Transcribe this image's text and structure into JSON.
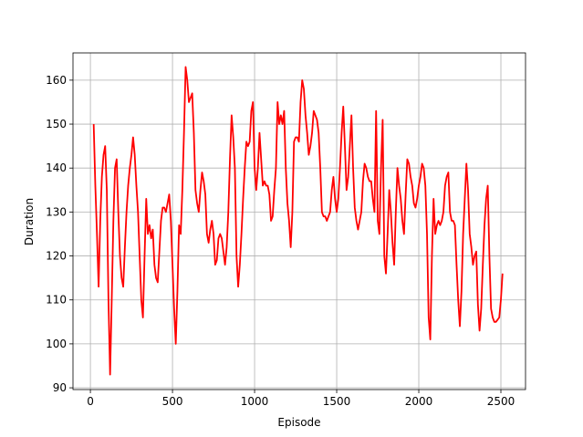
{
  "chart_data": {
    "type": "line",
    "xlabel": "Episode",
    "ylabel": "Duration",
    "x": [
      20,
      30,
      40,
      50,
      60,
      70,
      80,
      90,
      100,
      110,
      120,
      130,
      140,
      150,
      160,
      170,
      180,
      190,
      200,
      210,
      220,
      230,
      240,
      250,
      260,
      270,
      280,
      290,
      300,
      310,
      320,
      330,
      340,
      350,
      360,
      370,
      380,
      390,
      400,
      410,
      420,
      430,
      440,
      450,
      460,
      470,
      480,
      490,
      500,
      510,
      520,
      530,
      540,
      550,
      560,
      570,
      580,
      590,
      600,
      610,
      620,
      630,
      640,
      650,
      660,
      670,
      680,
      690,
      700,
      710,
      720,
      730,
      740,
      750,
      760,
      770,
      780,
      790,
      800,
      810,
      820,
      830,
      840,
      850,
      860,
      870,
      880,
      890,
      900,
      910,
      920,
      930,
      940,
      950,
      960,
      970,
      980,
      990,
      1000,
      1010,
      1020,
      1030,
      1040,
      1050,
      1060,
      1070,
      1080,
      1090,
      1100,
      1110,
      1120,
      1130,
      1140,
      1150,
      1160,
      1170,
      1180,
      1190,
      1200,
      1210,
      1220,
      1230,
      1240,
      1250,
      1260,
      1270,
      1280,
      1290,
      1300,
      1310,
      1320,
      1330,
      1340,
      1350,
      1360,
      1370,
      1380,
      1390,
      1400,
      1410,
      1420,
      1430,
      1440,
      1450,
      1460,
      1470,
      1480,
      1490,
      1500,
      1510,
      1520,
      1530,
      1540,
      1550,
      1560,
      1570,
      1580,
      1590,
      1600,
      1610,
      1620,
      1630,
      1640,
      1650,
      1660,
      1670,
      1680,
      1690,
      1700,
      1710,
      1720,
      1730,
      1740,
      1750,
      1760,
      1770,
      1780,
      1790,
      1800,
      1810,
      1820,
      1830,
      1840,
      1850,
      1860,
      1870,
      1880,
      1890,
      1900,
      1910,
      1920,
      1930,
      1940,
      1950,
      1960,
      1970,
      1980,
      1990,
      2000,
      2010,
      2020,
      2030,
      2040,
      2050,
      2060,
      2070,
      2080,
      2090,
      2100,
      2110,
      2120,
      2130,
      2140,
      2150,
      2160,
      2170,
      2180,
      2190,
      2200,
      2210,
      2220,
      2230,
      2240,
      2250,
      2260,
      2270,
      2280,
      2290,
      2300,
      2310,
      2320,
      2330,
      2340,
      2350,
      2360,
      2370,
      2380,
      2390,
      2400,
      2410,
      2420,
      2430,
      2440,
      2450,
      2460,
      2470,
      2480,
      2490,
      2500,
      2510
    ],
    "series": [
      {
        "color": "#ff0000",
        "values": [
          150,
          136,
          125,
          113,
          128,
          138,
          143,
          145,
          135,
          110,
          93,
          110,
          128,
          140,
          142,
          130,
          120,
          115,
          113,
          122,
          130,
          136,
          140,
          143,
          147,
          143,
          136,
          130,
          120,
          110,
          106,
          120,
          133,
          125,
          127,
          124,
          126,
          118,
          115,
          114,
          121,
          128,
          131,
          131,
          130,
          132,
          134,
          128,
          118,
          108,
          100,
          112,
          127,
          125,
          135,
          148,
          163,
          160,
          155,
          156,
          157,
          148,
          135,
          132,
          130,
          135,
          139,
          137,
          134,
          125,
          123,
          126,
          128,
          125,
          118,
          119,
          124,
          125,
          124,
          121,
          118,
          122,
          130,
          142,
          152,
          147,
          140,
          120,
          113,
          118,
          125,
          133,
          140,
          146,
          145,
          146,
          153,
          155,
          140,
          135,
          140,
          148,
          142,
          136,
          137,
          136,
          136,
          134,
          128,
          129,
          135,
          140,
          155,
          150,
          152,
          150,
          153,
          140,
          132,
          128,
          122,
          130,
          146,
          147,
          147,
          146,
          155,
          160,
          158,
          152,
          148,
          143,
          145,
          148,
          153,
          152,
          151,
          148,
          140,
          130,
          129,
          129,
          128,
          129,
          130,
          135,
          138,
          133,
          130,
          133,
          140,
          148,
          154,
          145,
          135,
          138,
          145,
          152,
          140,
          131,
          128,
          126,
          128,
          130,
          137,
          141,
          140,
          138,
          137,
          137,
          133,
          130,
          153,
          128,
          125,
          140,
          151,
          120,
          116,
          125,
          135,
          130,
          123,
          118,
          130,
          140,
          136,
          133,
          128,
          125,
          134,
          142,
          141,
          138,
          136,
          132,
          131,
          133,
          136,
          138,
          141,
          140,
          136,
          125,
          106,
          101,
          120,
          133,
          125,
          127,
          128,
          127,
          128,
          130,
          136,
          138,
          139,
          130,
          128,
          128,
          127,
          118,
          110,
          104,
          112,
          125,
          133,
          141,
          135,
          125,
          122,
          118,
          120,
          121,
          109,
          103,
          108,
          118,
          127,
          133,
          136,
          120,
          108,
          106,
          105,
          105,
          105.5,
          106,
          110,
          116
        ]
      }
    ],
    "xlim": [
      -106,
      2650
    ],
    "ylim": [
      89.6,
      166.2
    ],
    "xticks": [
      0,
      500,
      1000,
      1500,
      2000,
      2500
    ],
    "yticks": [
      90,
      100,
      110,
      120,
      130,
      140,
      150,
      160
    ],
    "grid": true
  }
}
